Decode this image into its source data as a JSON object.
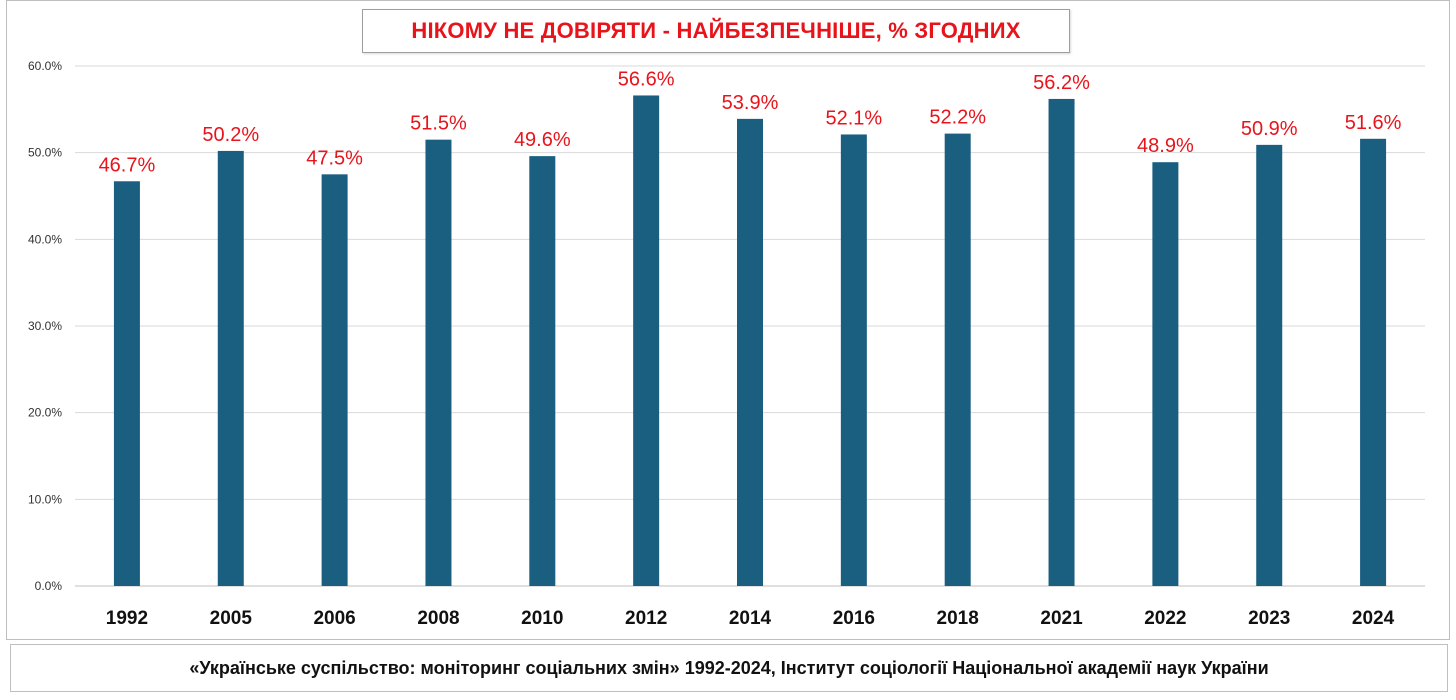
{
  "chart_data": {
    "type": "bar",
    "title": "НІКОМУ НЕ ДОВІРЯТИ - НАЙБЕЗПЕЧНІШЕ, % ЗГОДНИХ",
    "categories": [
      "1992",
      "2005",
      "2006",
      "2008",
      "2010",
      "2012",
      "2014",
      "2016",
      "2018",
      "2021",
      "2022",
      "2023",
      "2024"
    ],
    "values": [
      46.7,
      50.2,
      47.5,
      51.5,
      49.6,
      56.6,
      53.9,
      52.1,
      52.2,
      56.2,
      48.9,
      50.9,
      51.6
    ],
    "data_labels": [
      "46.7%",
      "50.2%",
      "47.5%",
      "51.5%",
      "49.6%",
      "56.6%",
      "53.9%",
      "52.1%",
      "52.2%",
      "56.2%",
      "48.9%",
      "50.9%",
      "51.6%"
    ],
    "yticks": [
      0,
      10,
      20,
      30,
      40,
      50,
      60
    ],
    "ytick_labels": [
      "0.0%",
      "10.0%",
      "20.0%",
      "30.0%",
      "40.0%",
      "50.0%",
      "60.0%"
    ],
    "ylim": [
      0,
      60
    ],
    "xlabel": "",
    "ylabel": "",
    "grid": true,
    "legend": "none",
    "colors": {
      "bar": "#1a5e80",
      "data_label": "#e8141b",
      "title": "#e8141b",
      "grid": "#d9d9d9"
    }
  },
  "footer": {
    "source": "«Українське суспільство: моніторинг соціальних змін» 1992-2024, Інститут соціології Національної академії наук України"
  }
}
